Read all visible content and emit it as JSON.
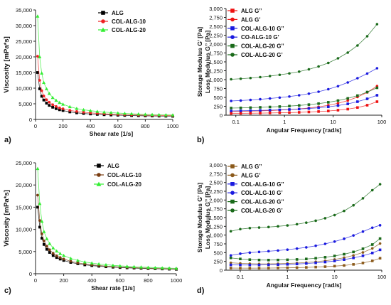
{
  "chart_data": [
    {
      "panel": "a)",
      "type": "line",
      "xlabel": "Shear rate [1/s]",
      "ylabel": "Viscosity [mPa*s]",
      "xlim": [
        0,
        1000
      ],
      "ylim": [
        0,
        35000
      ],
      "xticks": [
        "0",
        "200",
        "400",
        "600",
        "800",
        "1000"
      ],
      "yticks": [
        "0",
        "5,000",
        "10,000",
        "15,000",
        "20,000",
        "25,000",
        "30,000",
        "35,000"
      ],
      "xscale": "linear",
      "legend_position": "top-center",
      "x": [
        15,
        30,
        45,
        60,
        80,
        100,
        125,
        150,
        175,
        200,
        250,
        300,
        350,
        400,
        450,
        500,
        550,
        600,
        650,
        700,
        750,
        800,
        850,
        900,
        950,
        1000
      ],
      "series": [
        {
          "name": "ALG",
          "color": "#000000",
          "marker": "square",
          "values": [
            15000,
            9800,
            7400,
            6200,
            5200,
            4500,
            3900,
            3450,
            3100,
            2850,
            2400,
            2100,
            1900,
            1750,
            1620,
            1520,
            1430,
            1360,
            1300,
            1240,
            1190,
            1150,
            1110,
            1080,
            1050,
            1020
          ]
        },
        {
          "name": "COL-ALG-10",
          "color": "#ee2222",
          "marker": "circle",
          "values": [
            20200,
            12500,
            9200,
            7500,
            6300,
            5500,
            4700,
            4150,
            3700,
            3400,
            2900,
            2550,
            2300,
            2100,
            1950,
            1820,
            1720,
            1630,
            1560,
            1490,
            1430,
            1380,
            1340,
            1300,
            1260,
            1230
          ]
        },
        {
          "name": "COL-ALG-20",
          "color": "#33ee33",
          "marker": "triangle",
          "values": [
            33000,
            20000,
            14800,
            11800,
            9800,
            8300,
            7000,
            6100,
            5400,
            4850,
            4050,
            3500,
            3100,
            2800,
            2550,
            2350,
            2180,
            2040,
            1920,
            1810,
            1720,
            1640,
            1570,
            1510,
            1460,
            1410
          ]
        }
      ]
    },
    {
      "panel": "b)",
      "type": "line",
      "xlabel": "Angular Frequency [rad/s]",
      "ylabel": "Storage Modulus G’ [Pa]  Loss Modulus G’’ [Pa]",
      "xlim": [
        0.063,
        100
      ],
      "ylim": [
        0,
        3000
      ],
      "xscale": "log",
      "xticks": [
        "0.1",
        "1",
        "10",
        "100"
      ],
      "yticks": [
        "0",
        "250",
        "500",
        "750",
        "1,000",
        "1,250",
        "1,500",
        "1,750",
        "2,000",
        "2,250",
        "2,500",
        "2,750",
        "3,000"
      ],
      "legend_position": "top-left",
      "x": [
        0.08,
        0.126,
        0.2,
        0.317,
        0.502,
        0.796,
        1.26,
        2,
        3.17,
        5.02,
        7.96,
        12.6,
        20,
        31.7,
        50.2,
        80
      ],
      "series": [
        {
          "name": "ALG G’’",
          "color": "#ee1111",
          "marker": "square",
          "values": [
            50,
            52,
            55,
            58,
            62,
            67,
            73,
            80,
            90,
            102,
            118,
            140,
            170,
            215,
            280,
            380
          ]
        },
        {
          "name": "ALG G’",
          "color": "#ee1111",
          "marker": "circle",
          "values": [
            100,
            105,
            112,
            120,
            130,
            142,
            158,
            178,
            203,
            235,
            278,
            335,
            410,
            510,
            640,
            820
          ]
        },
        {
          "name": "COL-ALG-10 G’’",
          "color": "#1a1adf",
          "marker": "square",
          "values": [
            120,
            124,
            129,
            135,
            142,
            150,
            160,
            172,
            188,
            208,
            235,
            270,
            318,
            380,
            460,
            560
          ]
        },
        {
          "name": "CO-ALG-10 G’",
          "color": "#1a1adf",
          "marker": "circle",
          "values": [
            400,
            412,
            428,
            448,
            470,
            495,
            525,
            560,
            605,
            660,
            730,
            815,
            920,
            1040,
            1170,
            1320
          ]
        },
        {
          "name": "COL-ALG-20 G’’",
          "color": "#1a6a1a",
          "marker": "square",
          "values": [
            200,
            205,
            212,
            220,
            230,
            242,
            256,
            274,
            297,
            325,
            362,
            410,
            472,
            550,
            650,
            770
          ]
        },
        {
          "name": "COL-ALG-20 G’",
          "color": "#1a6a1a",
          "marker": "circle",
          "values": [
            1010,
            1025,
            1045,
            1070,
            1100,
            1135,
            1175,
            1225,
            1290,
            1370,
            1470,
            1600,
            1760,
            1960,
            2220,
            2560
          ]
        }
      ]
    },
    {
      "panel": "c)",
      "type": "line",
      "xlabel": "Shear rate [1/s]",
      "ylabel": "Viscosity [mPa*s]",
      "xlim": [
        0,
        1000
      ],
      "ylim": [
        0,
        25000
      ],
      "xticks": [
        "0",
        "200",
        "400",
        "600",
        "800",
        "1000"
      ],
      "yticks": [
        "0",
        "5,000",
        "10,000",
        "15,000",
        "20,000",
        "25,000"
      ],
      "xscale": "linear",
      "legend_position": "top-center",
      "x": [
        15,
        30,
        45,
        60,
        80,
        100,
        125,
        150,
        175,
        200,
        250,
        300,
        350,
        400,
        450,
        500,
        550,
        600,
        650,
        700,
        750,
        800,
        850,
        900,
        950,
        1000
      ],
      "series": [
        {
          "name": "ALG",
          "color": "#000000",
          "marker": "square",
          "values": [
            15000,
            10500,
            8000,
            6600,
            5500,
            4800,
            4100,
            3650,
            3300,
            3000,
            2550,
            2250,
            2000,
            1830,
            1690,
            1580,
            1480,
            1400,
            1330,
            1270,
            1210,
            1160,
            1120,
            1080,
            1040,
            1000
          ]
        },
        {
          "name": "COL-ALG-10",
          "color": "#7a3d12",
          "marker": "circle",
          "values": [
            17700,
            12000,
            9000,
            7400,
            6200,
            5400,
            4600,
            4050,
            3650,
            3300,
            2800,
            2450,
            2200,
            2010,
            1850,
            1720,
            1610,
            1520,
            1440,
            1370,
            1300,
            1250,
            1200,
            1150,
            1110,
            1070
          ]
        },
        {
          "name": "COL-ALG-20",
          "color": "#33ee33",
          "marker": "triangle",
          "values": [
            23700,
            15800,
            11800,
            9500,
            7900,
            6800,
            5800,
            5100,
            4550,
            4100,
            3450,
            3000,
            2650,
            2400,
            2200,
            2030,
            1890,
            1770,
            1670,
            1580,
            1500,
            1430,
            1370,
            1310,
            1260,
            1210
          ]
        }
      ]
    },
    {
      "panel": "d)",
      "type": "line",
      "xlabel": "Angular Frequency [rad/s]",
      "ylabel": "Storage Modulus G’ [Pa]  Loss Modulus G’’ [Pa]",
      "xlim": [
        0.05,
        100
      ],
      "ylim": [
        0,
        3000
      ],
      "xscale": "log",
      "xticks": [
        "0.1",
        "1",
        "10",
        "100"
      ],
      "yticks": [
        "0",
        "250",
        "500",
        "750",
        "1,000",
        "1,250",
        "1,500",
        "1,750",
        "2,000",
        "2,250",
        "2,500",
        "2,750",
        "3,000"
      ],
      "legend_position": "top-left",
      "x": [
        0.063,
        0.1,
        0.159,
        0.251,
        0.398,
        0.631,
        1,
        1.59,
        2.51,
        3.98,
        6.31,
        10,
        15.9,
        25.1,
        39.8,
        63.1,
        92
      ],
      "series": [
        {
          "name": "ALG G’’",
          "color": "#8b5a1b",
          "marker": "square",
          "values": [
            60,
            58,
            57,
            58,
            60,
            63,
            67,
            72,
            79,
            88,
            100,
            115,
            135,
            165,
            205,
            265,
            340
          ]
        },
        {
          "name": "ALG G’",
          "color": "#8b5a1b",
          "marker": "circle",
          "values": [
            210,
            195,
            185,
            180,
            180,
            185,
            192,
            203,
            218,
            240,
            268,
            305,
            355,
            420,
            505,
            620,
            760
          ]
        },
        {
          "name": "COL-ALG-10 G’’",
          "color": "#1a1adf",
          "marker": "square",
          "values": [
            150,
            148,
            147,
            148,
            152,
            158,
            166,
            176,
            190,
            208,
            232,
            262,
            300,
            350,
            410,
            490,
            580
          ]
        },
        {
          "name": "COL-ALG-10 G’",
          "color": "#1a1adf",
          "marker": "circle",
          "values": [
            420,
            470,
            500,
            520,
            540,
            560,
            585,
            615,
            650,
            695,
            750,
            815,
            895,
            990,
            1100,
            1210,
            1280
          ]
        },
        {
          "name": "COL-ALG-20 G’’",
          "color": "#1a6a1a",
          "marker": "square",
          "values": [
            350,
            320,
            300,
            290,
            288,
            290,
            296,
            306,
            320,
            340,
            368,
            405,
            455,
            520,
            610,
            730,
            900
          ]
        },
        {
          "name": "COL-ALG-20 G’",
          "color": "#1a6a1a",
          "marker": "circle",
          "values": [
            1110,
            1170,
            1200,
            1215,
            1230,
            1250,
            1275,
            1310,
            1355,
            1410,
            1480,
            1570,
            1690,
            1850,
            2050,
            2280,
            2450
          ]
        }
      ]
    }
  ]
}
